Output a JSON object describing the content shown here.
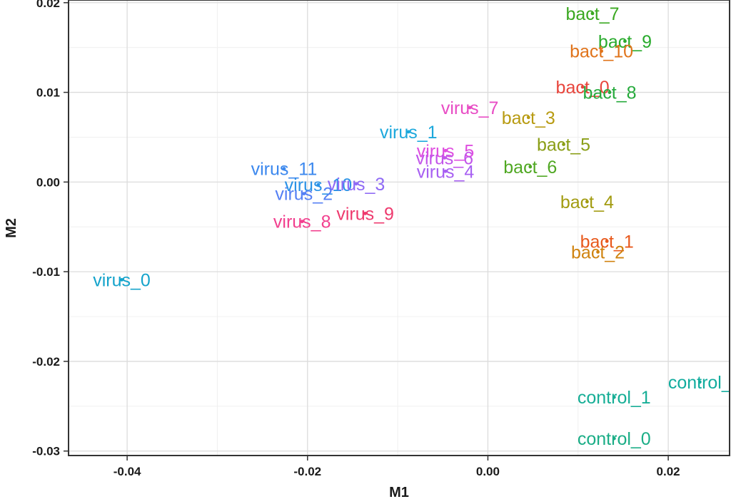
{
  "chart_data": {
    "type": "scatter",
    "xlabel": "M1",
    "ylabel": "M2",
    "xlim": [
      -0.0465,
      0.0268
    ],
    "ylim": [
      -0.0305,
      0.0203
    ],
    "x_ticks": [
      {
        "value": -0.04,
        "label": "-0.04"
      },
      {
        "value": -0.02,
        "label": "-0.02"
      },
      {
        "value": 0.0,
        "label": "0.00"
      },
      {
        "value": 0.02,
        "label": "0.02"
      }
    ],
    "y_ticks": [
      {
        "value": 0.02,
        "label": "0.02"
      },
      {
        "value": 0.01,
        "label": "0.01"
      },
      {
        "value": 0.0,
        "label": "0.00"
      },
      {
        "value": -0.01,
        "label": "-0.01"
      },
      {
        "value": -0.02,
        "label": "-0.02"
      },
      {
        "value": -0.03,
        "label": "-0.03"
      }
    ],
    "grid": true,
    "points": [
      {
        "label": "bact_7",
        "x": 0.0116,
        "y": 0.0188,
        "color": "#3aa820"
      },
      {
        "label": "bact_9",
        "x": 0.0152,
        "y": 0.0157,
        "color": "#29ab2d"
      },
      {
        "label": "bact_10",
        "x": 0.0126,
        "y": 0.0146,
        "color": "#e0731a"
      },
      {
        "label": "bact_0",
        "x": 0.0105,
        "y": 0.0106,
        "color": "#e8453c"
      },
      {
        "label": "bact_8",
        "x": 0.0135,
        "y": 0.01,
        "color": "#25aa3b"
      },
      {
        "label": "virus_7",
        "x": -0.002,
        "y": 0.0083,
        "color": "#e84bc4"
      },
      {
        "label": "bact_3",
        "x": 0.0045,
        "y": 0.0072,
        "color": "#b89b12"
      },
      {
        "label": "virus_1",
        "x": -0.0088,
        "y": 0.0056,
        "color": "#1ca8dc"
      },
      {
        "label": "bact_5",
        "x": 0.0084,
        "y": 0.0042,
        "color": "#8a9e16"
      },
      {
        "label": "virus_5",
        "x": -0.0047,
        "y": 0.0035,
        "color": "#df4ee0"
      },
      {
        "label": "virus_6",
        "x": -0.0048,
        "y": 0.0027,
        "color": "#c255ea"
      },
      {
        "label": "bact_6",
        "x": 0.0047,
        "y": 0.0017,
        "color": "#50a823"
      },
      {
        "label": "virus_4",
        "x": -0.0047,
        "y": 0.0012,
        "color": "#a75ff2"
      },
      {
        "label": "virus_11",
        "x": -0.0226,
        "y": 0.0015,
        "color": "#3c88ee"
      },
      {
        "label": "virus_10",
        "x": -0.0188,
        "y": -0.0003,
        "color": "#2a92e6"
      },
      {
        "label": "virus_3",
        "x": -0.0146,
        "y": -0.0002,
        "color": "#8f6af5"
      },
      {
        "label": "virus_2",
        "x": -0.0204,
        "y": -0.0013,
        "color": "#5580f4"
      },
      {
        "label": "bact_4",
        "x": 0.011,
        "y": -0.0022,
        "color": "#a29b10"
      },
      {
        "label": "virus_9",
        "x": -0.0136,
        "y": -0.0035,
        "color": "#ee3a6e"
      },
      {
        "label": "virus_8",
        "x": -0.0206,
        "y": -0.0044,
        "color": "#f23f8e"
      },
      {
        "label": "bact_1",
        "x": 0.0132,
        "y": -0.0066,
        "color": "#e8591c"
      },
      {
        "label": "bact_2",
        "x": 0.0122,
        "y": -0.0078,
        "color": "#d0830f"
      },
      {
        "label": "virus_0",
        "x": -0.0406,
        "y": -0.0109,
        "color": "#14a3cb"
      },
      {
        "label": "control_1",
        "x": 0.014,
        "y": -0.024,
        "color": "#16ae96"
      },
      {
        "label": "control_",
        "x": 0.0235,
        "y": -0.0223,
        "color": "#12ac9e"
      },
      {
        "label": "control_0",
        "x": 0.014,
        "y": -0.0286,
        "color": "#1aad86"
      }
    ]
  }
}
